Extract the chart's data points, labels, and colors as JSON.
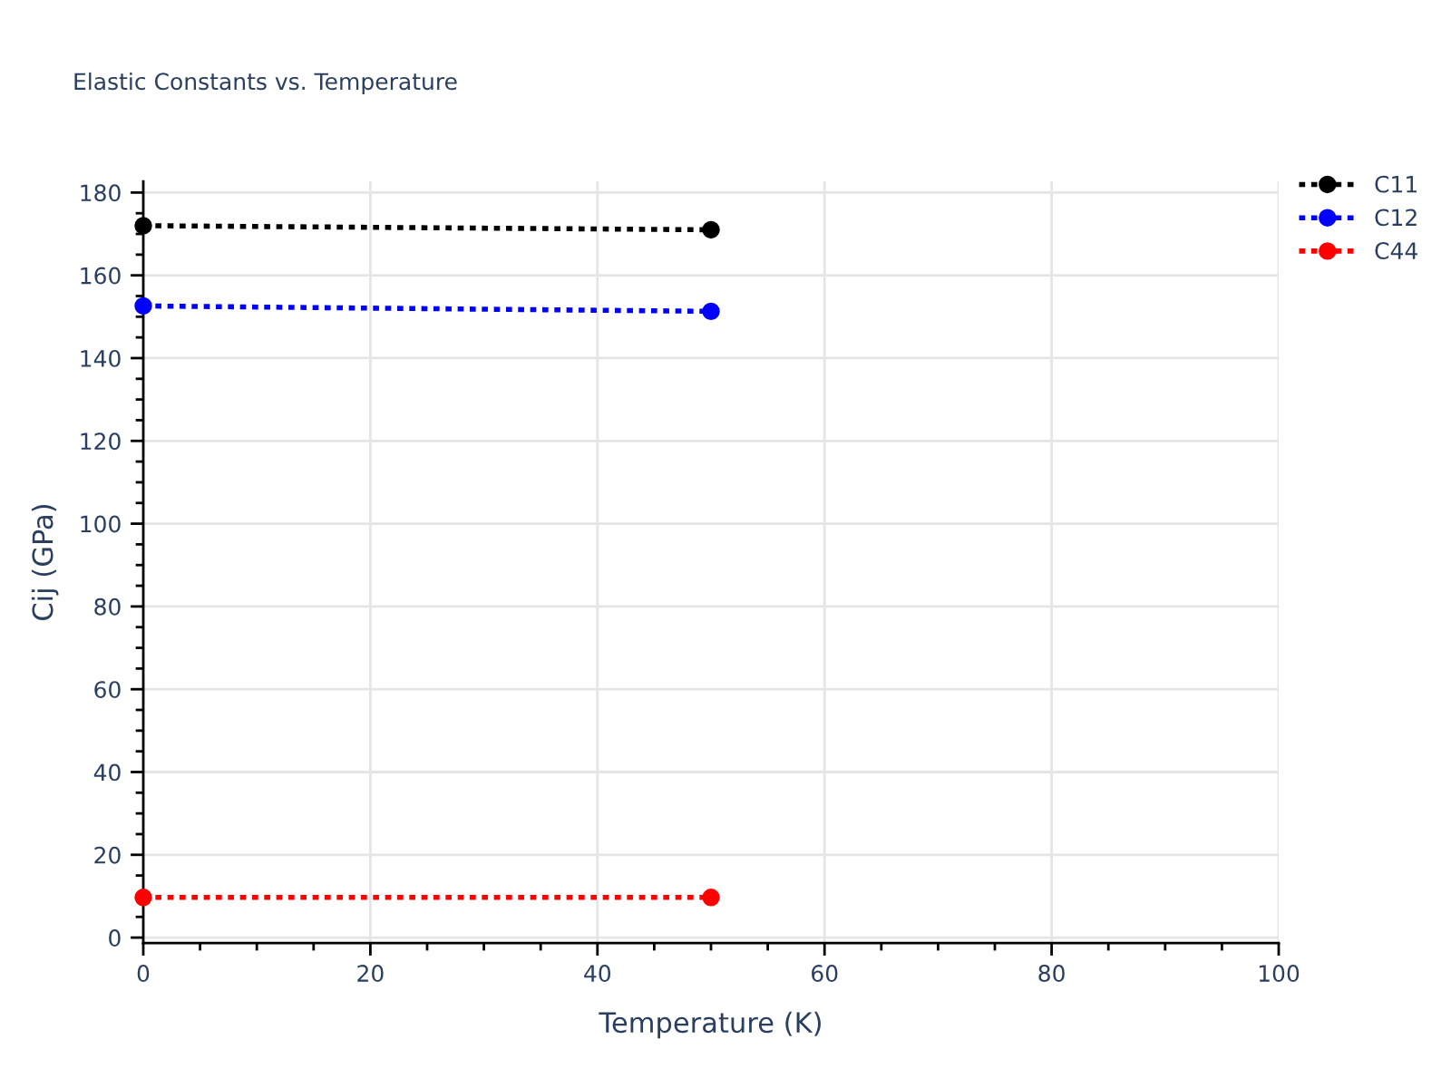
{
  "chart_data": {
    "type": "line",
    "title": "Elastic Constants vs. Temperature",
    "xlabel": "Temperature (K)",
    "ylabel": "Cij (GPa)",
    "x": [
      0,
      50
    ],
    "series": [
      {
        "name": "C11",
        "color": "#000000",
        "values": [
          172.0,
          171.0
        ]
      },
      {
        "name": "C12",
        "color": "#0000ff",
        "values": [
          152.6,
          151.3
        ]
      },
      {
        "name": "C44",
        "color": "#ff0000",
        "values": [
          9.7,
          9.7
        ]
      }
    ],
    "xlim": [
      0,
      100
    ],
    "xticks": [
      0,
      {
        "value": 5,
        "label": null
      },
      {
        "value": 10,
        "label": null
      },
      {
        "value": 15,
        "label": null
      },
      20,
      {
        "value": 25,
        "label": null
      },
      {
        "value": 30,
        "label": null
      },
      {
        "value": 35,
        "label": null
      },
      40,
      {
        "value": 45,
        "label": null
      },
      {
        "value": 50,
        "label": null
      },
      {
        "value": 55,
        "label": null
      },
      60,
      {
        "value": 65,
        "label": null
      },
      {
        "value": 70,
        "label": null
      },
      {
        "value": 75,
        "label": null
      },
      80,
      {
        "value": 85,
        "label": null
      },
      {
        "value": 90,
        "label": null
      },
      {
        "value": 95,
        "label": null
      },
      100
    ],
    "ylim": [
      -1.3,
      182.7
    ],
    "yticks": [
      0,
      {
        "value": 5,
        "label": null
      },
      {
        "value": 10,
        "label": null
      },
      {
        "value": 15,
        "label": null
      },
      20,
      {
        "value": 25,
        "label": null
      },
      {
        "value": 30,
        "label": null
      },
      {
        "value": 35,
        "label": null
      },
      40,
      {
        "value": 45,
        "label": null
      },
      {
        "value": 50,
        "label": null
      },
      {
        "value": 55,
        "label": null
      },
      60,
      {
        "value": 65,
        "label": null
      },
      {
        "value": 70,
        "label": null
      },
      {
        "value": 75,
        "label": null
      },
      80,
      {
        "value": 85,
        "label": null
      },
      {
        "value": 90,
        "label": null
      },
      {
        "value": 95,
        "label": null
      },
      100,
      {
        "value": 105,
        "label": null
      },
      {
        "value": 110,
        "label": null
      },
      {
        "value": 115,
        "label": null
      },
      120,
      {
        "value": 125,
        "label": null
      },
      {
        "value": 130,
        "label": null
      },
      {
        "value": 135,
        "label": null
      },
      140,
      {
        "value": 145,
        "label": null
      },
      {
        "value": 150,
        "label": null
      },
      {
        "value": 155,
        "label": null
      },
      160,
      {
        "value": 165,
        "label": null
      },
      {
        "value": 170,
        "label": null
      },
      {
        "value": 175,
        "label": null
      },
      180
    ],
    "grid": true,
    "legend": "top right",
    "marker": "circle",
    "line_style": "dotted"
  }
}
